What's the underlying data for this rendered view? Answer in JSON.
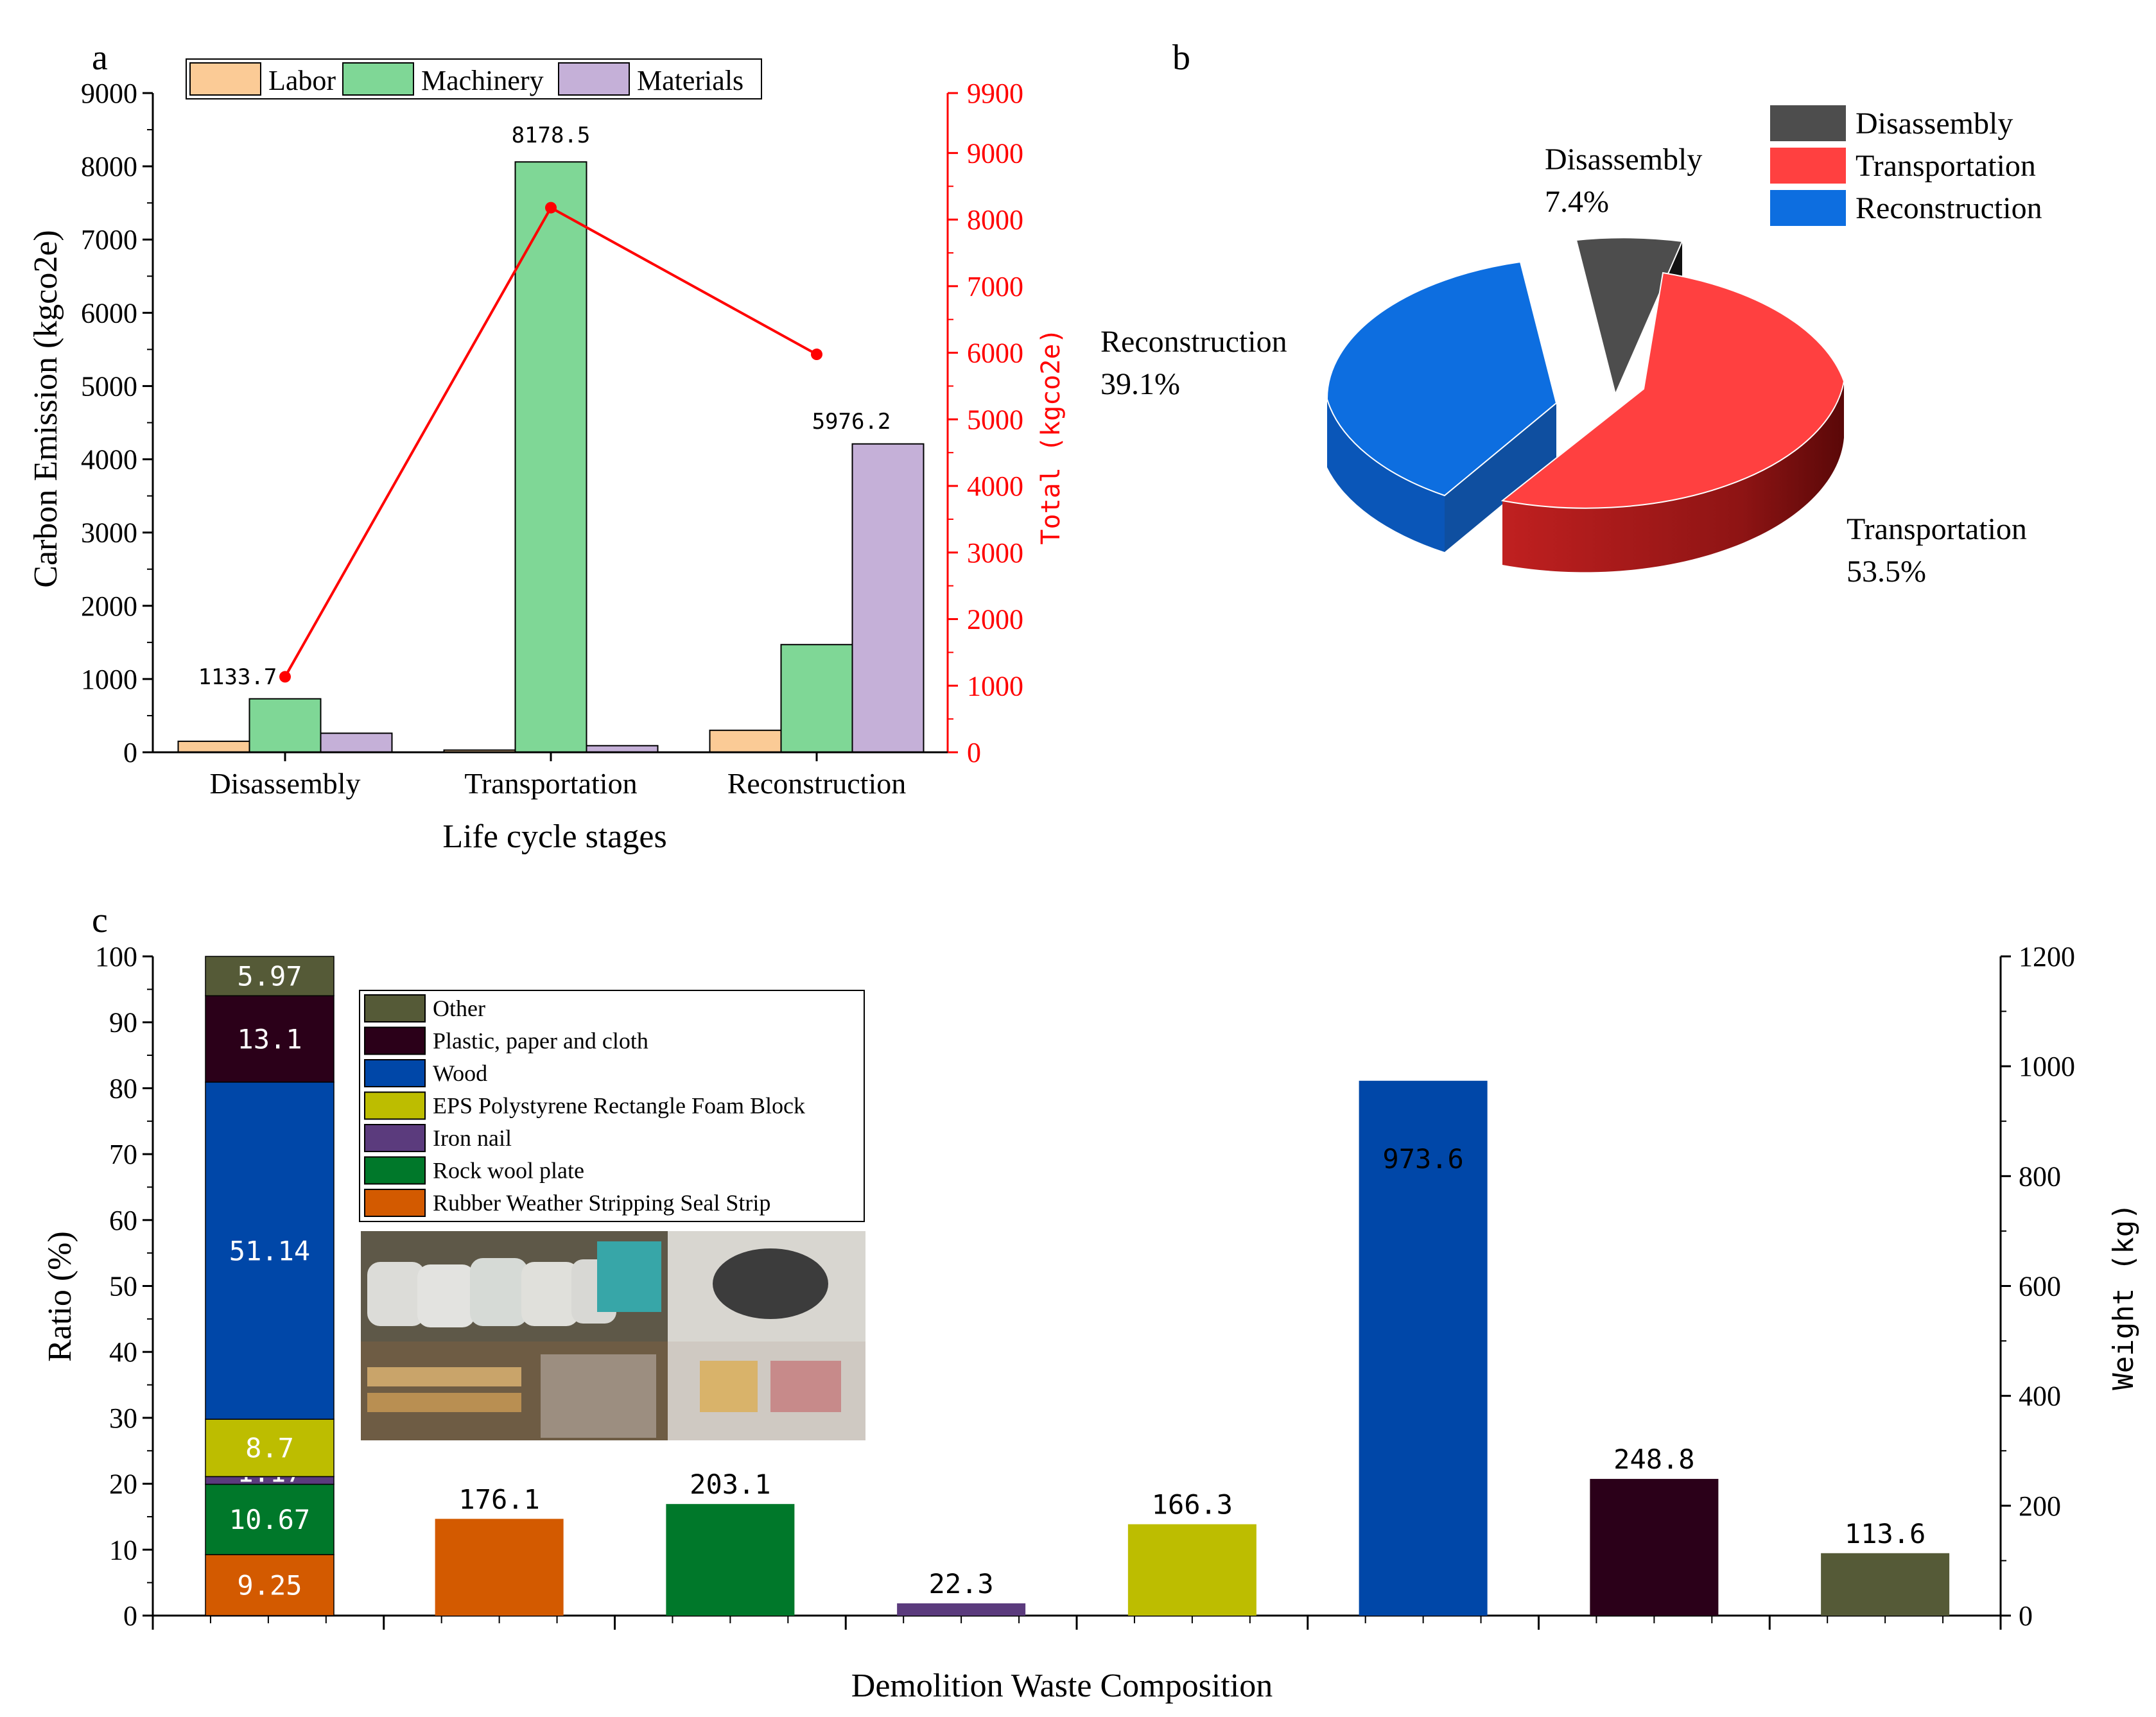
{
  "panels": {
    "a_letter": "a",
    "b_letter": "b",
    "c_letter": "c"
  },
  "photo": {
    "description_icon": "photo-collage-icon"
  },
  "colors": {
    "labor": "#FBCB96",
    "machinery": "#7FD796",
    "materials": "#C5B0D8",
    "total_line": "#FF0000",
    "disassembly": "#4D4D4D",
    "transportation": "#FF4040",
    "reconstruction": "#0D6EE0",
    "other": "#555A37",
    "plastic": "#2B0019",
    "wood": "#0047A8",
    "eps": "#BDBD00",
    "iron": "#5B3B7D",
    "rockwool": "#00782A",
    "rubber": "#D35A00"
  },
  "chart_data": [
    {
      "id": "a",
      "type": "bar",
      "title": "",
      "xlabel": "Life cycle stages",
      "ylabel": "Carbon Emission (kgco2e)",
      "y2label": "Total (kgco2e)",
      "categories": [
        "Disassembly",
        "Transportation",
        "Reconstruction"
      ],
      "ylim": [
        0,
        9000
      ],
      "y2lim": [
        0,
        9900
      ],
      "yticks": [
        "0",
        "1000",
        "2000",
        "3000",
        "4000",
        "5000",
        "6000",
        "7000",
        "8000",
        "9000"
      ],
      "y2ticks": [
        "0",
        "1000",
        "2000",
        "3000",
        "4000",
        "5000",
        "6000",
        "7000",
        "8000",
        "9000",
        "9900"
      ],
      "series": [
        {
          "name": "Labor",
          "values": [
            150,
            30,
            300
          ]
        },
        {
          "name": "Machinery",
          "values": [
            730,
            8060,
            1470
          ]
        },
        {
          "name": "Materials",
          "values": [
            260,
            90,
            4210
          ]
        }
      ],
      "total": {
        "name": "Total",
        "values": [
          1133.7,
          8178.5,
          5976.2
        ],
        "labels": [
          "1133.7",
          "8178.5",
          "5976.2"
        ]
      },
      "legend_position": "top-left"
    },
    {
      "id": "b",
      "type": "pie",
      "title": "",
      "categories": [
        "Disassembly",
        "Transportation",
        "Reconstruction"
      ],
      "values": [
        7.4,
        53.5,
        39.1
      ],
      "labels": [
        "7.4%",
        "53.5%",
        "39.1%"
      ],
      "legend_position": "top-right"
    },
    {
      "id": "c",
      "type": "bar",
      "title": "",
      "xlabel": "Demolition Waste Composition",
      "ylabel": "Ratio (%)",
      "y2label": "Weight (kg)",
      "ylim": [
        0,
        100
      ],
      "y2lim": [
        0,
        1200
      ],
      "yticks": [
        "0",
        "10",
        "20",
        "30",
        "40",
        "50",
        "60",
        "70",
        "80",
        "90",
        "100"
      ],
      "y2ticks": [
        "0",
        "200",
        "400",
        "600",
        "800",
        "1000",
        "1200"
      ],
      "stacked": {
        "segments": [
          {
            "name": "Rubber Weather Stripping Seal Strip",
            "value": 9.25,
            "label": "9.25"
          },
          {
            "name": "Rock wool plate",
            "value": 10.67,
            "label": "10.67"
          },
          {
            "name": "Iron nail",
            "value": 1.17,
            "label": "1.17"
          },
          {
            "name": "EPS Polystyrene Rectangle Foam Block",
            "value": 8.7,
            "label": "8.7"
          },
          {
            "name": "Wood",
            "value": 51.14,
            "label": "51.14"
          },
          {
            "name": "Plastic, paper and cloth",
            "value": 13.1,
            "label": "13.1"
          },
          {
            "name": "Other",
            "value": 5.97,
            "label": "5.97"
          }
        ]
      },
      "weights": {
        "categories": [
          "Rubber Weather Stripping Seal Strip",
          "Rock wool plate",
          "Iron nail",
          "EPS Polystyrene Rectangle Foam Block",
          "Wood",
          "Plastic, paper and cloth",
          "Other"
        ],
        "values": [
          176.1,
          203.1,
          22.3,
          166.3,
          973.6,
          248.8,
          113.6
        ],
        "labels": [
          "176.1",
          "203.1",
          "22.3",
          "166.3",
          "973.6",
          "248.8",
          "113.6"
        ]
      },
      "legend": [
        "Other",
        "Plastic, paper and cloth",
        "Wood",
        "EPS Polystyrene Rectangle Foam Block",
        "Iron nail",
        "Rock wool plate",
        "Rubber Weather Stripping Seal Strip"
      ],
      "legend_position": "top-left"
    }
  ]
}
